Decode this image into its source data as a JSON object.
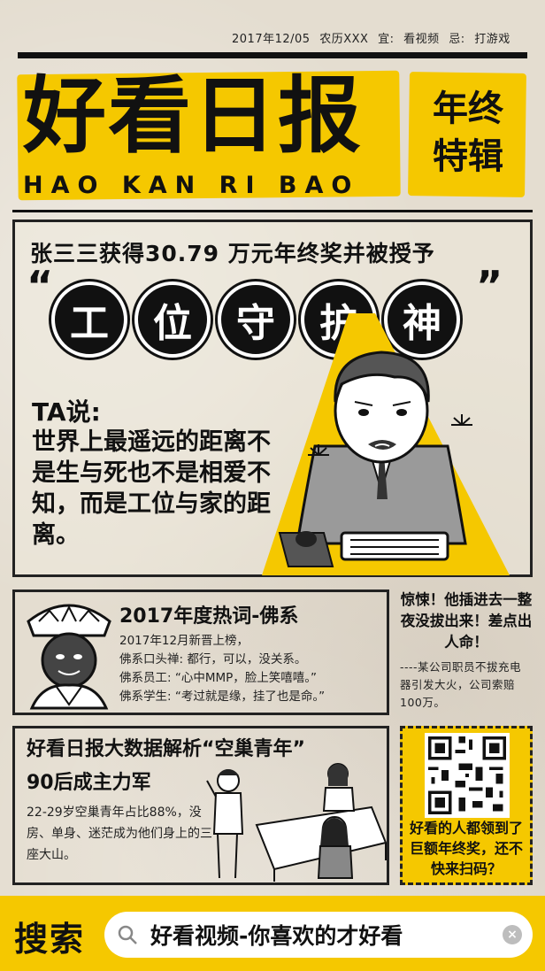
{
  "header": {
    "date": "2017年12/05",
    "lunar": "农历XXX",
    "suitable_label": "宜:",
    "suitable": "看视频",
    "avoid_label": "忌:",
    "avoid": "打游戏"
  },
  "masthead": {
    "title": "好看日报",
    "subtitle": "HAO KAN RI BAO",
    "special": "年终特辑"
  },
  "story": {
    "headline": "张三三获得30.79 万元年终奖并被授予",
    "quote_open": "“",
    "quote_close": "”",
    "award_chars": [
      "工",
      "位",
      "守",
      "护",
      "神"
    ],
    "ta_label": "TA说:",
    "ta_quote": "世界上最遥远的距离不是生与死也不是相爱不知，而是工位与家的距离。"
  },
  "buddha": {
    "title": "2017年度热词-佛系",
    "lines": [
      "2017年12月新晋上榜，",
      "佛系口头禅:  都行，可以，没关系。",
      "佛系员工:   “心中MMP，脸上笑嘻嘻。”",
      "佛系学生:   “考过就是缘，挂了也是命。”"
    ]
  },
  "side_news": {
    "title": "惊悚！他插进去一整夜没拔出来！差点出人命！",
    "body": "----某公司职员不拔充电器引发大火，公司索赔100万。"
  },
  "data_report": {
    "title": "好看日报大数据解析“空巢青年”",
    "subtitle": "90后成主力军",
    "body": "22-29岁空巢青年占比88%，没房、单身、迷茫成为他们身上的三座大山。"
  },
  "qr": {
    "text": "好看的人都领到了巨额年终奖，还不快来扫码？"
  },
  "search": {
    "label": "搜索",
    "value": "好看视频-你喜欢的才好看",
    "clear": "×"
  },
  "colors": {
    "accent": "#f5c800",
    "ink": "#111111",
    "paper": "#e4ddd0"
  }
}
